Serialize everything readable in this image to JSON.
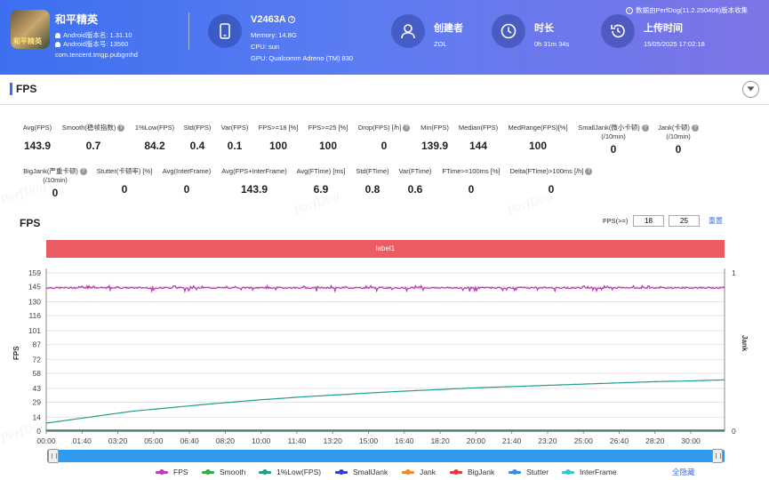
{
  "header": {
    "app_name": "和平精英",
    "app_icon_text": "和平精英",
    "android_version_name": "Android版本名: 1.31.10",
    "android_version_code": "Android版本号: 13560",
    "package_name": "com.tencent.tmgp.pubgmhd",
    "device": {
      "model": "V2463A",
      "memory": "Memory: 14.8G",
      "cpu": "CPU: sun",
      "gpu": "GPU: Qualcomm Adreno (TM) 830"
    },
    "creator_label": "创建者",
    "creator_value": "ZOL",
    "duration_label": "时长",
    "duration_value": "0h 31m 34s",
    "upload_label": "上传时间",
    "upload_value": "15/05/2025 17:02:18",
    "notice": "数据由PerfDog(11.2.250408)版本收集"
  },
  "section": {
    "title": "FPS"
  },
  "metrics_row1": [
    {
      "label": "Avg(FPS)",
      "value": "143.9",
      "q": false
    },
    {
      "label": "Smooth(稳帧指数)",
      "value": "0.7",
      "q": true
    },
    {
      "label": "1%Low(FPS)",
      "value": "84.2",
      "q": false
    },
    {
      "label": "Std(FPS)",
      "value": "0.4",
      "q": false
    },
    {
      "label": "Var(FPS)",
      "value": "0.1",
      "q": false
    },
    {
      "label": "FPS>=18 [%]",
      "value": "100",
      "q": false
    },
    {
      "label": "FPS>=25 [%]",
      "value": "100",
      "q": false
    },
    {
      "label": "Drop(FPS) [/h]",
      "value": "0",
      "q": true
    },
    {
      "label": "Min(FPS)",
      "value": "139.9",
      "q": false
    },
    {
      "label": "Median(FPS)",
      "value": "144",
      "q": false
    },
    {
      "label": "MedRange(FPS)[%]",
      "value": "100",
      "q": false
    },
    {
      "label": "SmallJank(微小卡顿)",
      "label2": "(/10min)",
      "value": "0",
      "q": true
    },
    {
      "label": "Jank(卡顿)",
      "label2": "(/10min)",
      "value": "0",
      "q": true
    }
  ],
  "metrics_row2": [
    {
      "label": "BigJank(严重卡顿)",
      "label2": "(/10min)",
      "value": "0",
      "q": true
    },
    {
      "label": "Stutter(卡顿率) [%]",
      "value": "0",
      "q": false
    },
    {
      "label": "Avg(InterFrame)",
      "value": "0",
      "q": false
    },
    {
      "label": "Avg(FPS+InterFrame)",
      "value": "143.9",
      "q": false
    },
    {
      "label": "Avg(FTime) [ms]",
      "value": "6.9",
      "q": false
    },
    {
      "label": "Std(FTime)",
      "value": "0.8",
      "q": false
    },
    {
      "label": "Var(FTime)",
      "value": "0.6",
      "q": false
    },
    {
      "label": "FTime>=100ms [%]",
      "value": "0",
      "q": false
    },
    {
      "label": "Delta(FTime)>100ms [/h]",
      "value": "0",
      "q": true
    }
  ],
  "chart_controls": {
    "title": "FPS",
    "fps_threshold_label": "FPS(>=)",
    "threshold1": "18",
    "threshold2": "25",
    "reset_label": "重置",
    "label_band": "label1",
    "hide_all": "全隐藏"
  },
  "watermark": "PerfDog",
  "colors": {
    "fps": "#c23ab3",
    "smooth": "#2fae49",
    "low1": "#1f9e8c",
    "smalljank": "#3c3fc6",
    "jank": "#f08a24",
    "bigjank": "#e23b3b",
    "stutter": "#3a8de6",
    "interframe": "#38c3cf"
  },
  "chart_data": {
    "type": "line",
    "ylabel_left": "FPS",
    "ylabel_right": "Jank",
    "y_ticks_left": [
      "0",
      "14",
      "29",
      "43",
      "58",
      "72",
      "87",
      "101",
      "116",
      "130",
      "145",
      "159"
    ],
    "y_ticks_right": [
      "0",
      "1"
    ],
    "ylim_left": [
      0,
      159
    ],
    "ylim_right": [
      0,
      1
    ],
    "x_ticks": [
      "00:00",
      "01:40",
      "03:20",
      "05:00",
      "06:40",
      "08:20",
      "10:00",
      "11:40",
      "13:20",
      "15:00",
      "16:40",
      "18:20",
      "20:00",
      "21:40",
      "23:20",
      "25:00",
      "26:40",
      "28:20",
      "30:00"
    ],
    "x_range_minutes": [
      0,
      31.57
    ],
    "series": [
      {
        "name": "FPS",
        "approx_value": 144,
        "min": 139.9,
        "max": 146
      },
      {
        "name": "Smooth",
        "values": [
          0
        ]
      },
      {
        "name": "1%Low(FPS)",
        "x_minutes": [
          0,
          2,
          4,
          6,
          8,
          10,
          12,
          14,
          16,
          18,
          20,
          22,
          24,
          26,
          28,
          30,
          31.57
        ],
        "values": [
          8,
          14,
          20,
          24,
          28,
          31.5,
          34.5,
          37,
          39.5,
          41.5,
          43.5,
          45,
          46.5,
          48,
          49.5,
          50.5,
          51.5
        ]
      },
      {
        "name": "SmallJank",
        "values": [
          0
        ]
      },
      {
        "name": "Jank",
        "values": [
          0
        ]
      },
      {
        "name": "BigJank",
        "values": [
          0
        ]
      },
      {
        "name": "Stutter",
        "values": [
          0
        ]
      },
      {
        "name": "InterFrame",
        "values": [
          0
        ]
      }
    ],
    "legend_position": "bottom",
    "grid": true
  }
}
